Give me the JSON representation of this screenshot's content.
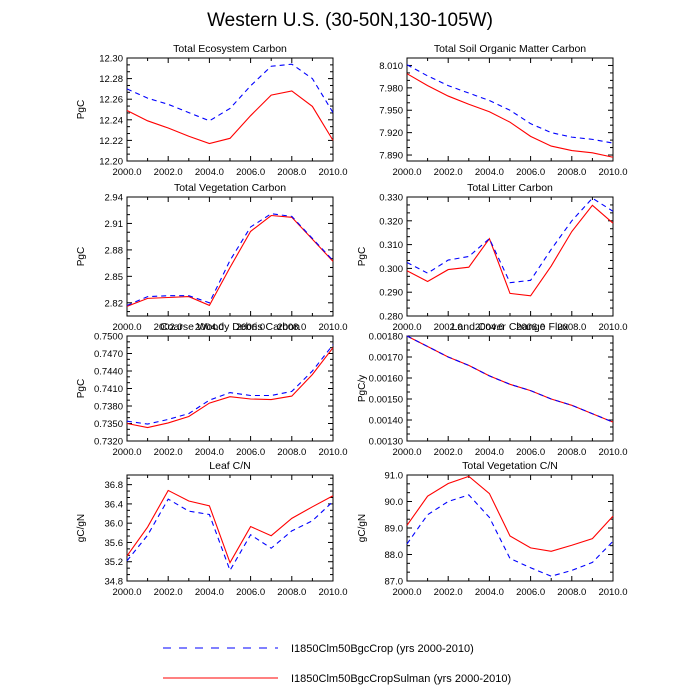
{
  "figure_title": "Western U.S. (30-50N,130-105W)",
  "legend": [
    {
      "label": "I1850Clm50BgcCrop (yrs 2000-2010)",
      "color": "#0000ff",
      "dash": "dashed"
    },
    {
      "label": "I1850Clm50BgcCropSulman (yrs 2000-2010)",
      "color": "#ff0000",
      "dash": "solid"
    }
  ],
  "chart_data": [
    {
      "type": "line",
      "title": "Total Ecosystem Carbon",
      "ylabel": "PgC",
      "x": [
        2000,
        2001,
        2002,
        2003,
        2004,
        2005,
        2006,
        2007,
        2008,
        2009,
        2010
      ],
      "xlim": [
        2000,
        2010
      ],
      "ylim": [
        12.2,
        12.3
      ],
      "xticks": [
        "2000.0",
        "2002.0",
        "2004.0",
        "2006.0",
        "2008.0",
        "2010.0"
      ],
      "yticks": [
        "12.20",
        "12.22",
        "12.24",
        "12.26",
        "12.28",
        "12.30"
      ],
      "series": [
        {
          "name": "I1850Clm50BgcCrop (yrs 2000-2010)",
          "values": [
            12.27,
            12.261,
            12.255,
            12.247,
            12.239,
            12.251,
            12.273,
            12.292,
            12.294,
            12.28,
            12.247
          ]
        },
        {
          "name": "I1850Clm50BgcCropSulman (yrs 2000-2010)",
          "values": [
            12.249,
            12.239,
            12.232,
            12.224,
            12.217,
            12.222,
            12.244,
            12.264,
            12.268,
            12.253,
            12.22
          ]
        }
      ]
    },
    {
      "type": "line",
      "title": "Total Soil Organic Matter Carbon",
      "ylabel": "",
      "x": [
        2000,
        2001,
        2002,
        2003,
        2004,
        2005,
        2006,
        2007,
        2008,
        2009,
        2010
      ],
      "xlim": [
        2000,
        2010
      ],
      "ylim": [
        7.882,
        8.02
      ],
      "xticks": [
        "2000.0",
        "2002.0",
        "2004.0",
        "2006.0",
        "2008.0",
        "2010.0"
      ],
      "yticks": [
        "7.890",
        "7.920",
        "7.950",
        "7.980",
        "8.010"
      ],
      "series": [
        {
          "name": "I1850Clm50BgcCrop (yrs 2000-2010)",
          "values": [
            8.011,
            7.996,
            7.983,
            7.973,
            7.963,
            7.95,
            7.932,
            7.92,
            7.914,
            7.911,
            7.906
          ]
        },
        {
          "name": "I1850Clm50BgcCropSulman (yrs 2000-2010)",
          "values": [
            7.999,
            7.983,
            7.969,
            7.958,
            7.948,
            7.934,
            7.915,
            7.902,
            7.896,
            7.893,
            7.887
          ]
        }
      ]
    },
    {
      "type": "line",
      "title": "Total Vegetation Carbon",
      "ylabel": "PgC",
      "x": [
        2000,
        2001,
        2002,
        2003,
        2004,
        2005,
        2006,
        2007,
        2008,
        2009,
        2010
      ],
      "xlim": [
        2000,
        2010
      ],
      "ylim": [
        2.805,
        2.94
      ],
      "xticks": [
        "2000.0",
        "2002.0",
        "2004.0",
        "2006.0",
        "2008.0",
        "2010.0"
      ],
      "yticks": [
        "2.82",
        "2.85",
        "2.88",
        "2.91",
        "2.94"
      ],
      "series": [
        {
          "name": "I1850Clm50BgcCrop (yrs 2000-2010)",
          "values": [
            2.817,
            2.827,
            2.828,
            2.828,
            2.82,
            2.868,
            2.906,
            2.921,
            2.918,
            2.893,
            2.868
          ]
        },
        {
          "name": "I1850Clm50BgcCropSulman (yrs 2000-2010)",
          "values": [
            2.816,
            2.825,
            2.826,
            2.827,
            2.817,
            2.86,
            2.901,
            2.919,
            2.917,
            2.892,
            2.867
          ]
        }
      ]
    },
    {
      "type": "line",
      "title": "Total Litter Carbon",
      "ylabel": "PgC",
      "x": [
        2000,
        2001,
        2002,
        2003,
        2004,
        2005,
        2006,
        2007,
        2008,
        2009,
        2010
      ],
      "xlim": [
        2000,
        2010
      ],
      "ylim": [
        0.28,
        0.33
      ],
      "xticks": [
        "2000.0",
        "2002.0",
        "2004.0",
        "2006.0",
        "2008.0",
        "2010.0"
      ],
      "yticks": [
        "0.280",
        "0.290",
        "0.300",
        "0.310",
        "0.320",
        "0.330"
      ],
      "series": [
        {
          "name": "I1850Clm50BgcCrop (yrs 2000-2010)",
          "values": [
            0.3025,
            0.298,
            0.3035,
            0.305,
            0.3125,
            0.294,
            0.295,
            0.308,
            0.32,
            0.3295,
            0.324
          ]
        },
        {
          "name": "I1850Clm50BgcCropSulman (yrs 2000-2010)",
          "values": [
            0.299,
            0.2945,
            0.2995,
            0.3005,
            0.3125,
            0.2895,
            0.2885,
            0.301,
            0.3155,
            0.3265,
            0.319
          ]
        }
      ]
    },
    {
      "type": "line",
      "title": "Coarse Woody Debris Carbon",
      "ylabel": "PgC",
      "x": [
        2000,
        2001,
        2002,
        2003,
        2004,
        2005,
        2006,
        2007,
        2008,
        2009,
        2010
      ],
      "xlim": [
        2000,
        2010
      ],
      "ylim": [
        0.732,
        0.75
      ],
      "xticks": [
        "2000.0",
        "2002.0",
        "2004.0",
        "2006.0",
        "2008.0",
        "2010.0"
      ],
      "yticks": [
        "0.7320",
        "0.7350",
        "0.7380",
        "0.7410",
        "0.7440",
        "0.7470",
        "0.7500"
      ],
      "series": [
        {
          "name": "I1850Clm50BgcCrop (yrs 2000-2010)",
          "values": [
            0.7354,
            0.7349,
            0.7357,
            0.7367,
            0.739,
            0.7403,
            0.7398,
            0.7398,
            0.7405,
            0.744,
            0.7485
          ]
        },
        {
          "name": "I1850Clm50BgcCropSulman (yrs 2000-2010)",
          "values": [
            0.735,
            0.7343,
            0.7351,
            0.7362,
            0.7385,
            0.7396,
            0.7392,
            0.7391,
            0.7397,
            0.7434,
            0.748
          ]
        }
      ]
    },
    {
      "type": "line",
      "title": "Land Cover Change Flux",
      "ylabel": "PgC/y",
      "x": [
        2000,
        2001,
        2002,
        2003,
        2004,
        2005,
        2006,
        2007,
        2008,
        2009,
        2010
      ],
      "xlim": [
        2000,
        2010
      ],
      "ylim": [
        0.0013,
        0.0018
      ],
      "xticks": [
        "2000.0",
        "2002.0",
        "2004.0",
        "2006.0",
        "2008.0",
        "2010.0"
      ],
      "yticks": [
        "0.00130",
        "0.00140",
        "0.00150",
        "0.00160",
        "0.00170",
        "0.00180"
      ],
      "series": [
        {
          "name": "I1850Clm50BgcCrop (yrs 2000-2010)",
          "values": [
            0.0018,
            0.00175,
            0.0017,
            0.00166,
            0.00161,
            0.00157,
            0.00154,
            0.0015,
            0.00147,
            0.00143,
            0.00139
          ]
        },
        {
          "name": "I1850Clm50BgcCropSulman (yrs 2000-2010)",
          "values": [
            0.0018,
            0.00175,
            0.0017,
            0.00166,
            0.00161,
            0.00157,
            0.00154,
            0.0015,
            0.00147,
            0.00143,
            0.00139
          ]
        }
      ]
    },
    {
      "type": "line",
      "title": "Leaf C/N",
      "ylabel": "gC/gN",
      "x": [
        2000,
        2001,
        2002,
        2003,
        2004,
        2005,
        2006,
        2007,
        2008,
        2009,
        2010
      ],
      "xlim": [
        2000,
        2010
      ],
      "ylim": [
        34.8,
        37.0
      ],
      "xticks": [
        "2000.0",
        "2002.0",
        "2004.0",
        "2006.0",
        "2008.0",
        "2010.0"
      ],
      "yticks": [
        "34.8",
        "35.2",
        "35.6",
        "36.0",
        "36.4",
        "36.8"
      ],
      "series": [
        {
          "name": "I1850Clm50BgcCrop (yrs 2000-2010)",
          "values": [
            35.22,
            35.75,
            36.5,
            36.25,
            36.18,
            35.02,
            35.76,
            35.48,
            35.84,
            36.05,
            36.45
          ]
        },
        {
          "name": "I1850Clm50BgcCropSulman (yrs 2000-2010)",
          "values": [
            35.32,
            35.92,
            36.68,
            36.46,
            36.36,
            35.18,
            35.93,
            35.74,
            36.1,
            36.34,
            36.57
          ]
        }
      ]
    },
    {
      "type": "line",
      "title": "Total Vegetation C/N",
      "ylabel": "gC/gN",
      "x": [
        2000,
        2001,
        2002,
        2003,
        2004,
        2005,
        2006,
        2007,
        2008,
        2009,
        2010
      ],
      "xlim": [
        2000,
        2010
      ],
      "ylim": [
        87.0,
        91.0
      ],
      "xticks": [
        "2000.0",
        "2002.0",
        "2004.0",
        "2006.0",
        "2008.0",
        "2010.0"
      ],
      "yticks": [
        "87.0",
        "88.0",
        "89.0",
        "90.0",
        "91.0"
      ],
      "series": [
        {
          "name": "I1850Clm50BgcCrop (yrs 2000-2010)",
          "values": [
            88.4,
            89.5,
            90.0,
            90.25,
            89.4,
            87.85,
            87.5,
            87.18,
            87.4,
            87.7,
            88.5
          ]
        },
        {
          "name": "I1850Clm50BgcCropSulman (yrs 2000-2010)",
          "values": [
            89.1,
            90.2,
            90.68,
            90.95,
            90.3,
            88.7,
            88.25,
            88.12,
            88.35,
            88.6,
            89.45
          ]
        }
      ]
    }
  ]
}
